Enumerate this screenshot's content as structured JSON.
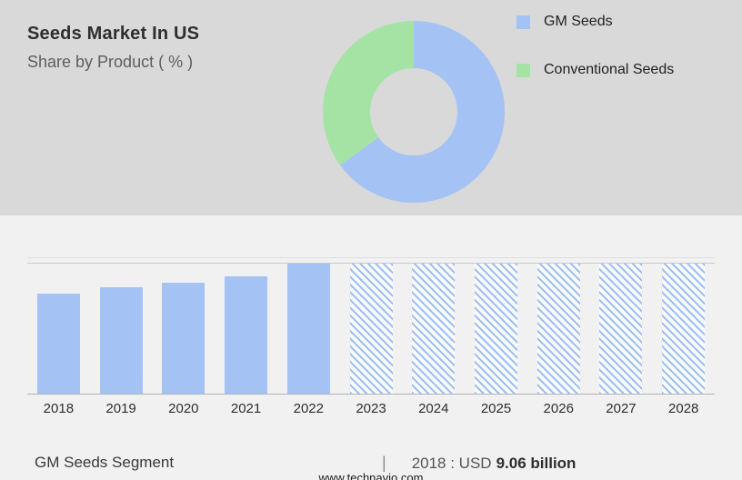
{
  "header": {
    "title": "Seeds Market In US",
    "subtitle": "Share by Product ( % )"
  },
  "donut": {
    "legend": [
      {
        "label": "GM Seeds",
        "color": "#a4c2f4",
        "value": 65
      },
      {
        "label": "Conventional Seeds",
        "color": "#a5e3a5",
        "value": 35
      }
    ]
  },
  "chart_data": [
    {
      "type": "pie",
      "title": "Share by Product ( % )",
      "labels": [
        "GM Seeds",
        "Conventional Seeds"
      ],
      "values": [
        65,
        35
      ],
      "style": "donut",
      "legend_position": "right"
    },
    {
      "type": "bar",
      "title": "GM Seeds Segment",
      "categories": [
        "2018",
        "2019",
        "2020",
        "2021",
        "2022",
        "2023",
        "2024",
        "2025",
        "2026",
        "2027",
        "2028"
      ],
      "values_percent_of_max": [
        77,
        82,
        85,
        90,
        100,
        100,
        100,
        100,
        100,
        100,
        100
      ],
      "forecast_start_index": 5,
      "bar_color": "#a4c2f4",
      "forecast_style": "hatched",
      "annotation": "2018 : USD 9.06 billion",
      "xlabel": "",
      "ylabel": "",
      "grid": "horizontal-top-and-axis"
    }
  ],
  "footer": {
    "segment_label": "GM Seeds Segment",
    "separator": "|",
    "value_prefix": "2018 : USD",
    "value_bold": "9.06 billion",
    "website": "www.technavio.com"
  }
}
